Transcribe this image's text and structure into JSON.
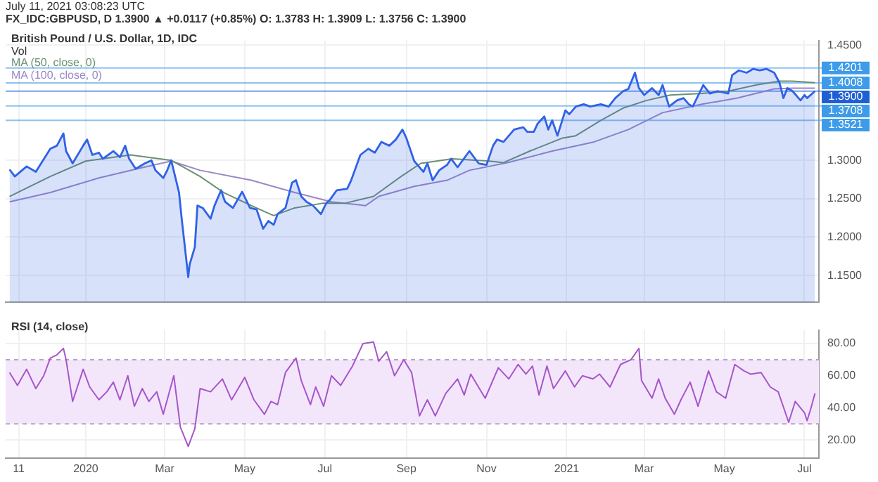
{
  "chart_data": [
    {
      "type": "line",
      "title": "British Pound / U.S. Dollar, 1D, IDC",
      "annotations": [
        "July 11, 2021 03:08:23 UTC",
        "FX_IDC:GBPUSD, D  1.3900 ▲ +0.0117 (+0.85%)  O: 1.3783  H: 1.3909  L: 1.3756  C: 1.3900",
        "Vol"
      ],
      "series": [
        {
          "type": "area",
          "color": "#2f62e6",
          "x": [
            "2019-11-04",
            "2019-11-08",
            "2019-11-17",
            "2019-11-24",
            "2019-12-05",
            "2019-12-10",
            "2019-12-15",
            "2019-12-17",
            "2019-12-22",
            "2019-12-30",
            "2020-01-02",
            "2020-01-06",
            "2020-01-11",
            "2020-01-14",
            "2020-01-22",
            "2020-01-27",
            "2020-01-31",
            "2020-02-03",
            "2020-02-08",
            "2020-02-15",
            "2020-02-20",
            "2020-02-23",
            "2020-02-29",
            "2020-03-03",
            "2020-03-06",
            "2020-03-12",
            "2020-03-14",
            "2020-03-19",
            "2020-03-20",
            "2020-03-24",
            "2020-03-26",
            "2020-03-30",
            "2020-04-05",
            "2020-04-08",
            "2020-04-13",
            "2020-04-16",
            "2020-04-22",
            "2020-04-29",
            "2020-05-05",
            "2020-05-10",
            "2020-05-15",
            "2020-05-19",
            "2020-05-23",
            "2020-05-26",
            "2020-06-01",
            "2020-06-06",
            "2020-06-09",
            "2020-06-13",
            "2020-06-17",
            "2020-06-22",
            "2020-06-28",
            "2020-07-02",
            "2020-07-05",
            "2020-07-10",
            "2020-07-18",
            "2020-07-21",
            "2020-07-28",
            "2020-08-03",
            "2020-08-08",
            "2020-08-13",
            "2020-08-19",
            "2020-08-24",
            "2020-08-29",
            "2020-09-01",
            "2020-09-07",
            "2020-09-14",
            "2020-09-17",
            "2020-09-21",
            "2020-09-26",
            "2020-10-02",
            "2020-10-05",
            "2020-10-10",
            "2020-10-19",
            "2020-10-26",
            "2020-11-01",
            "2020-11-06",
            "2020-11-09",
            "2020-11-14",
            "2020-11-22",
            "2020-11-29",
            "2020-12-02",
            "2020-12-07",
            "2020-12-10",
            "2020-12-15",
            "2020-12-18",
            "2020-12-21",
            "2020-12-25",
            "2020-12-31",
            "2021-01-03",
            "2021-01-08",
            "2021-01-14",
            "2021-01-19",
            "2021-01-27",
            "2021-02-02",
            "2021-02-07",
            "2021-02-13",
            "2021-02-17",
            "2021-02-22",
            "2021-02-25",
            "2021-03-01",
            "2021-03-07",
            "2021-03-12",
            "2021-03-15",
            "2021-03-20",
            "2021-03-26",
            "2021-03-31",
            "2021-04-04",
            "2021-04-07",
            "2021-04-15",
            "2021-04-20",
            "2021-04-26",
            "2021-05-04",
            "2021-05-07",
            "2021-05-12",
            "2021-05-18",
            "2021-05-23",
            "2021-05-28",
            "2021-06-02",
            "2021-06-08",
            "2021-06-12",
            "2021-06-15",
            "2021-06-18",
            "2021-06-22",
            "2021-06-28",
            "2021-07-01",
            "2021-07-03",
            "2021-07-09"
          ],
          "values": [
            1.288,
            1.279,
            1.292,
            1.285,
            1.315,
            1.319,
            1.335,
            1.312,
            1.296,
            1.319,
            1.327,
            1.307,
            1.31,
            1.302,
            1.312,
            1.304,
            1.319,
            1.302,
            1.289,
            1.296,
            1.3,
            1.287,
            1.277,
            1.287,
            1.3,
            1.258,
            1.224,
            1.148,
            1.164,
            1.187,
            1.241,
            1.238,
            1.224,
            1.241,
            1.261,
            1.246,
            1.238,
            1.259,
            1.238,
            1.236,
            1.211,
            1.221,
            1.216,
            1.23,
            1.238,
            1.271,
            1.274,
            1.253,
            1.246,
            1.241,
            1.23,
            1.244,
            1.249,
            1.261,
            1.263,
            1.274,
            1.307,
            1.315,
            1.31,
            1.324,
            1.319,
            1.327,
            1.34,
            1.329,
            1.299,
            1.285,
            1.296,
            1.274,
            1.287,
            1.294,
            1.302,
            1.291,
            1.312,
            1.296,
            1.294,
            1.319,
            1.327,
            1.324,
            1.34,
            1.343,
            1.337,
            1.337,
            1.348,
            1.357,
            1.34,
            1.352,
            1.332,
            1.365,
            1.36,
            1.37,
            1.373,
            1.37,
            1.373,
            1.37,
            1.381,
            1.39,
            1.393,
            1.414,
            1.394,
            1.385,
            1.394,
            1.385,
            1.398,
            1.37,
            1.378,
            1.381,
            1.373,
            1.37,
            1.398,
            1.387,
            1.39,
            1.387,
            1.411,
            1.417,
            1.414,
            1.419,
            1.417,
            1.419,
            1.414,
            1.401,
            1.381,
            1.394,
            1.39,
            1.378,
            1.385,
            1.381,
            1.39
          ]
        },
        {
          "name": "MA (50, close, 0)",
          "type": "line",
          "color": "#6b9070",
          "x": [
            "2019-11-04",
            "2019-12-05",
            "2020-01-01",
            "2020-02-04",
            "2020-03-06",
            "2020-03-28",
            "2020-04-15",
            "2020-05-06",
            "2020-05-23",
            "2020-06-08",
            "2020-06-29",
            "2020-07-16",
            "2020-08-07",
            "2020-08-28",
            "2020-09-12",
            "2020-10-06",
            "2020-11-03",
            "2020-11-14",
            "2020-12-04",
            "2020-12-29",
            "2021-01-08",
            "2021-01-27",
            "2021-02-13",
            "2021-03-03",
            "2021-03-21",
            "2021-04-14",
            "2021-05-04",
            "2021-05-25",
            "2021-06-12",
            "2021-06-22",
            "2021-07-09"
          ],
          "values": [
            1.253,
            1.279,
            1.299,
            1.307,
            1.3,
            1.279,
            1.258,
            1.241,
            1.228,
            1.238,
            1.244,
            1.244,
            1.253,
            1.279,
            1.296,
            1.302,
            1.299,
            1.297,
            1.312,
            1.329,
            1.332,
            1.352,
            1.368,
            1.378,
            1.385,
            1.387,
            1.39,
            1.398,
            1.403,
            1.403,
            1.401
          ]
        },
        {
          "name": "MA (100, close, 0)",
          "type": "line",
          "color": "#9b87c9",
          "x": [
            "2019-11-04",
            "2019-12-05",
            "2020-01-11",
            "2020-02-12",
            "2020-03-06",
            "2020-03-28",
            "2020-05-06",
            "2020-06-08",
            "2020-07-06",
            "2020-08-01",
            "2020-08-11",
            "2020-09-07",
            "2020-10-02",
            "2020-10-19",
            "2020-11-17",
            "2020-12-21",
            "2021-01-22",
            "2021-02-17",
            "2021-03-15",
            "2021-04-14",
            "2021-05-11",
            "2021-06-08",
            "2021-06-22",
            "2021-07-09"
          ],
          "values": [
            1.246,
            1.258,
            1.277,
            1.29,
            1.299,
            1.287,
            1.274,
            1.258,
            1.246,
            1.241,
            1.253,
            1.266,
            1.274,
            1.287,
            1.297,
            1.312,
            1.324,
            1.34,
            1.362,
            1.373,
            1.381,
            1.393,
            1.394,
            1.394
          ]
        }
      ],
      "xlim": [
        "2019-11-01",
        "2021-07-12"
      ],
      "xticks": [
        {
          "value": "2019-11-11",
          "label": null
        },
        {
          "value": "2020-01-01",
          "label": null
        },
        {
          "value": "2020-03-01",
          "label": null
        },
        {
          "value": "2020-05-01",
          "label": null
        },
        {
          "value": "2020-07-01",
          "label": null
        },
        {
          "value": "2020-09-01",
          "label": null
        },
        {
          "value": "2020-11-01",
          "label": null
        },
        {
          "value": "2021-01-01",
          "label": null
        },
        {
          "value": "2021-03-01",
          "label": null
        },
        {
          "value": "2021-05-01",
          "label": null
        },
        {
          "value": "2021-07-01",
          "label": null
        }
      ],
      "ylim": [
        1.115,
        1.456
      ],
      "yticks": [
        {
          "value": 1.15,
          "label": "1.1500"
        },
        {
          "value": 1.2,
          "label": "1.2000"
        },
        {
          "value": 1.25,
          "label": "1.2500"
        },
        {
          "value": 1.3,
          "label": "1.3000"
        },
        {
          "value": 1.45,
          "label": "1.4500"
        }
      ],
      "ref_lines": [
        {
          "axis": "y",
          "value": 1.4201,
          "label": "1.4201",
          "color": "#3d9be9"
        },
        {
          "axis": "y",
          "value": 1.4008,
          "label": "1.4008",
          "color": "#3d9be9"
        },
        {
          "axis": "y",
          "value": 1.39,
          "label": "1.3900",
          "color": "#1f5fd6"
        },
        {
          "axis": "y",
          "value": 1.3708,
          "label": "1.3708",
          "color": "#3d9be9"
        },
        {
          "axis": "y",
          "value": 1.3521,
          "label": "1.3521",
          "color": "#3d9be9"
        }
      ],
      "grid": true,
      "tick_labels": "y"
    },
    {
      "type": "line",
      "title": "RSI (14, close)",
      "series": [
        {
          "color": "#a656c9",
          "x": [
            "2019-11-04",
            "2019-11-10",
            "2019-11-17",
            "2019-11-24",
            "2019-11-30",
            "2019-12-05",
            "2019-12-10",
            "2019-12-15",
            "2019-12-17",
            "2019-12-22",
            "2019-12-30",
            "2020-01-04",
            "2020-01-11",
            "2020-01-17",
            "2020-01-22",
            "2020-01-27",
            "2020-02-02",
            "2020-02-07",
            "2020-02-13",
            "2020-02-18",
            "2020-02-24",
            "2020-02-29",
            "2020-03-08",
            "2020-03-13",
            "2020-03-19",
            "2020-03-24",
            "2020-03-28",
            "2020-04-05",
            "2020-04-14",
            "2020-04-21",
            "2020-05-01",
            "2020-05-08",
            "2020-05-16",
            "2020-05-21",
            "2020-05-26",
            "2020-06-01",
            "2020-06-09",
            "2020-06-13",
            "2020-06-20",
            "2020-06-24",
            "2020-06-30",
            "2020-07-06",
            "2020-07-13",
            "2020-07-22",
            "2020-07-30",
            "2020-08-07",
            "2020-08-11",
            "2020-08-17",
            "2020-08-23",
            "2020-08-30",
            "2020-09-05",
            "2020-09-11",
            "2020-09-17",
            "2020-09-23",
            "2020-10-01",
            "2020-10-10",
            "2020-10-15",
            "2020-10-20",
            "2020-10-31",
            "2020-11-10",
            "2020-11-18",
            "2020-11-25",
            "2020-12-01",
            "2020-12-06",
            "2020-12-11",
            "2020-12-17",
            "2020-12-22",
            "2020-12-31",
            "2021-01-07",
            "2021-01-13",
            "2021-01-21",
            "2021-01-26",
            "2021-02-03",
            "2021-02-11",
            "2021-02-19",
            "2021-02-25",
            "2021-02-27",
            "2021-03-07",
            "2021-03-12",
            "2021-03-17",
            "2021-03-24",
            "2021-03-29",
            "2021-04-05",
            "2021-04-11",
            "2021-04-19",
            "2021-04-25",
            "2021-05-02",
            "2021-05-09",
            "2021-05-16",
            "2021-05-21",
            "2021-05-29",
            "2021-06-05",
            "2021-06-11",
            "2021-06-19",
            "2021-06-24",
            "2021-07-01",
            "2021-07-03",
            "2021-07-06",
            "2021-07-09"
          ],
          "values": [
            62,
            54,
            64,
            52,
            60,
            71,
            73,
            77,
            70,
            44,
            64,
            53,
            45,
            50,
            56,
            45,
            60,
            41,
            52,
            44,
            50,
            36,
            60,
            28,
            16,
            27,
            52,
            50,
            58,
            45,
            59,
            45,
            36,
            44,
            42,
            62,
            71,
            57,
            42,
            53,
            41,
            60,
            54,
            66,
            80,
            81,
            69,
            75,
            60,
            70,
            62,
            35,
            45,
            35,
            49,
            58,
            48,
            61,
            46,
            65,
            58,
            67,
            61,
            66,
            48,
            66,
            52,
            63,
            53,
            60,
            58,
            61,
            53,
            67,
            70,
            77,
            57,
            46,
            58,
            46,
            36,
            45,
            56,
            41,
            63,
            50,
            46,
            67,
            63,
            61,
            62,
            53,
            50,
            31,
            44,
            37,
            32,
            40,
            49
          ]
        }
      ],
      "xlim": [
        "2019-11-01",
        "2021-07-12"
      ],
      "xticks": [
        {
          "value": "2019-11-11",
          "label": "11"
        },
        {
          "value": "2020-01-01",
          "label": "2020"
        },
        {
          "value": "2020-03-01",
          "label": "Mar"
        },
        {
          "value": "2020-05-01",
          "label": "May"
        },
        {
          "value": "2020-07-01",
          "label": "Jul"
        },
        {
          "value": "2020-09-01",
          "label": "Sep"
        },
        {
          "value": "2020-11-01",
          "label": "Nov"
        },
        {
          "value": "2021-01-01",
          "label": "2021"
        },
        {
          "value": "2021-03-01",
          "label": "Mar"
        },
        {
          "value": "2021-05-01",
          "label": "May"
        },
        {
          "value": "2021-07-01",
          "label": "Jul"
        }
      ],
      "ylim": [
        8.7,
        88.5
      ],
      "yticks": [
        {
          "value": 20,
          "label": "20.00"
        },
        {
          "value": 40,
          "label": "40.00"
        },
        {
          "value": 60,
          "label": "60.00"
        },
        {
          "value": 80,
          "label": "80.00"
        }
      ],
      "bands": [
        {
          "axis": "y",
          "from": 30,
          "to": 70,
          "color": "#f3e6fb"
        }
      ],
      "ref_lines": [
        {
          "axis": "y",
          "value": 70,
          "color": "#b9a0c9",
          "line_style": "dashed"
        },
        {
          "axis": "y",
          "value": 30,
          "color": "#b9a0c9",
          "line_style": "dashed"
        }
      ],
      "grid": true
    }
  ]
}
